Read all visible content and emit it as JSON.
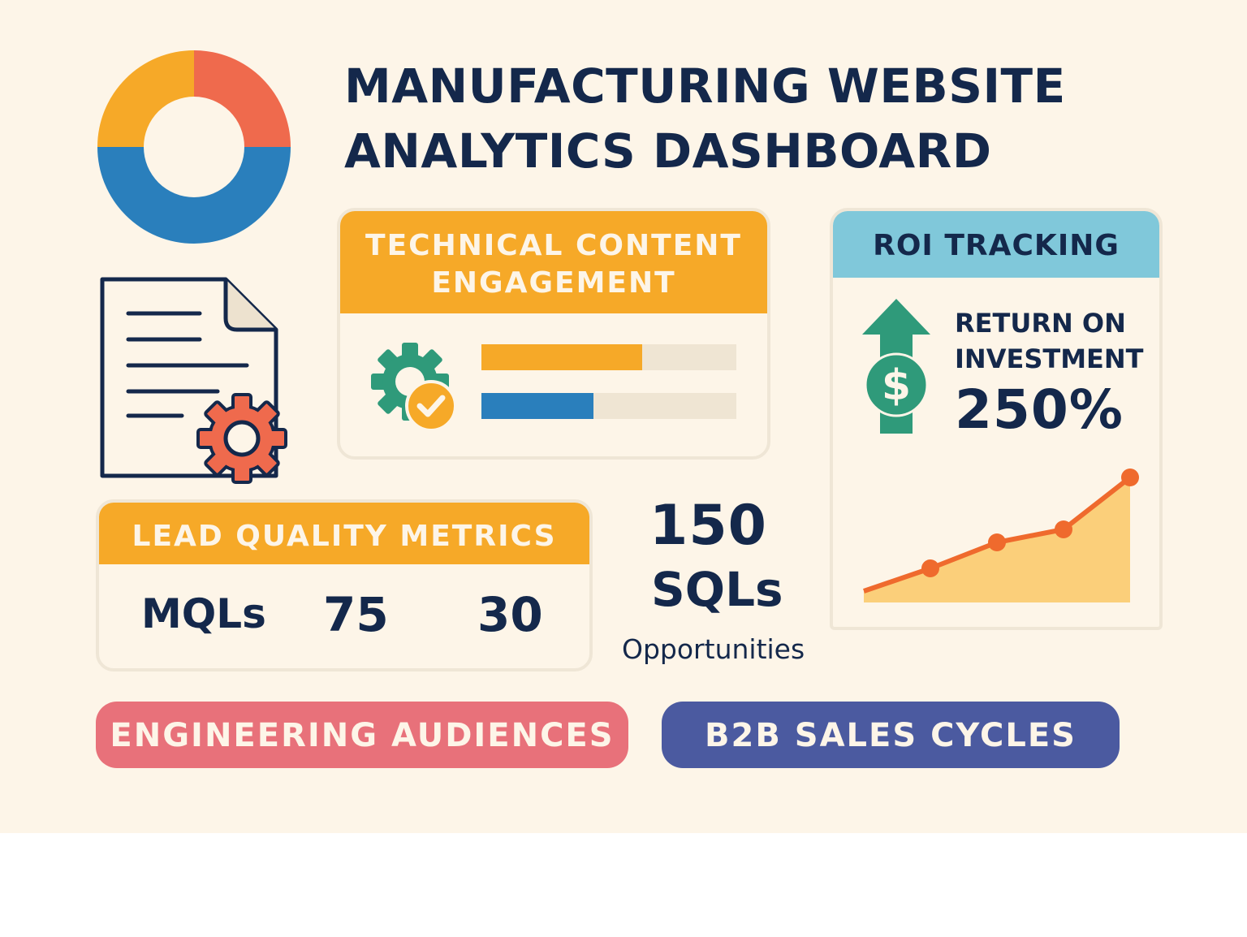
{
  "title": {
    "line1": "MANUFACTURING WEBSITE",
    "line2": "ANALYTICS DASHBOARD"
  },
  "colors": {
    "background": "#fdf5e8",
    "navy": "#14284b",
    "orange": "#f6a928",
    "red": "#ef6a4d",
    "blue": "#2a7fbc",
    "teal": "#2f9a7a",
    "sky": "#80c8da",
    "pink": "#e8717a",
    "indigo": "#4b5aa0"
  },
  "donut_icon": {
    "icon": "donut-chart-icon",
    "segments": [
      {
        "color": "#ef6a4d",
        "fraction": 0.25
      },
      {
        "color": "#2a7fbc",
        "fraction": 0.5
      },
      {
        "color": "#f6a928",
        "fraction": 0.25
      }
    ]
  },
  "document_icon": "document-gear-icon",
  "technical_content": {
    "header_line1": "TECHNICAL CONTENT",
    "header_line2": "ENGAGEMENT",
    "icon": "gear-check-icon",
    "bars": [
      {
        "color": "#f6a928",
        "fraction": 0.63
      },
      {
        "color": "#2a7fbc",
        "fraction": 0.44
      }
    ]
  },
  "roi": {
    "header": "ROI TRACKING",
    "label_line1": "RETURN ON",
    "label_line2": "INVESTMENT",
    "value": "250%",
    "icon": "dollar-arrow-up-icon",
    "trend_values": [
      1,
      2,
      4,
      5,
      9
    ]
  },
  "lead_quality": {
    "header": "LEAD QUALITY METRICS",
    "mqls_label": "MQLs",
    "value_a": "75",
    "value_b": "30"
  },
  "sqls": {
    "value": "150",
    "label": "SQLs",
    "opportunities_label": "Opportunities"
  },
  "pills": {
    "engineering": "ENGINEERING AUDIENCES",
    "b2b": "B2B SALES CYCLES"
  }
}
